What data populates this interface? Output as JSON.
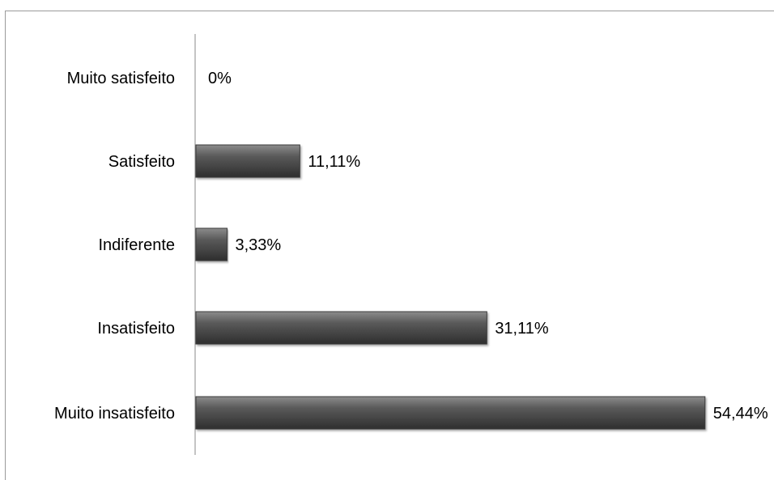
{
  "chart_data": {
    "type": "bar",
    "orientation": "horizontal",
    "categories": [
      "Muito satisfeito",
      "Satisfeito",
      "Indiferente",
      "Insatisfeito",
      "Muito insatisfeito"
    ],
    "values": [
      0,
      11.11,
      3.33,
      31.11,
      54.44
    ],
    "data_labels": [
      "0%",
      "11,11%",
      "3,33%",
      "31,11%",
      "54,44%"
    ],
    "title": "",
    "xlabel": "",
    "ylabel": "",
    "xlim": [
      0,
      60
    ],
    "grid": false,
    "legend": "none",
    "bar_color": "#5a5a5a",
    "bar_highlight": "#8c8c8c",
    "bar_shadow": "#2e2e2e"
  }
}
